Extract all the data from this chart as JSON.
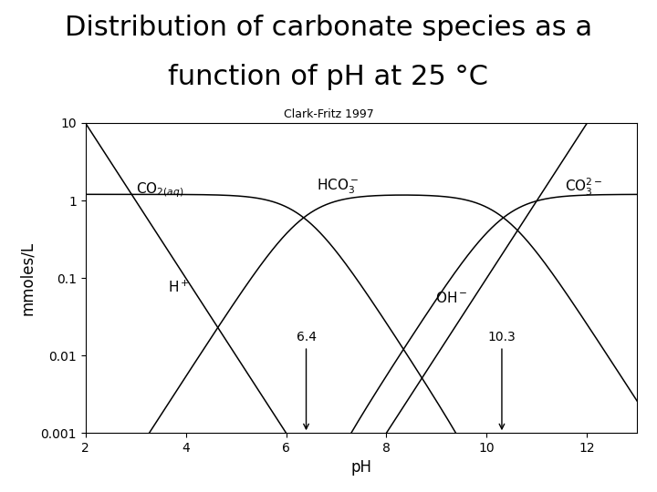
{
  "title_line1": "Distribution of carbonate species as a",
  "title_line2": "function of pH at 25 °C",
  "subtitle": "Clark-Fritz 1997",
  "xlabel": "pH",
  "ylabel": "mmoles/L",
  "xlim": [
    2,
    13
  ],
  "xticks": [
    2,
    4,
    6,
    8,
    10,
    12
  ],
  "ytick_vals": [
    -3,
    -2,
    -1,
    0,
    1
  ],
  "ytick_labels": [
    "0.001",
    "0.01",
    "0.1",
    "1",
    "10"
  ],
  "background": "#ffffff",
  "line_color": "#000000",
  "line_width": 1.1,
  "pKa1": 6.35,
  "pKa2": 10.33,
  "pKw": 14.0,
  "CT_mmol": 1.2,
  "annotation_arrows": [
    {
      "x": 6.4,
      "label": "6.4"
    },
    {
      "x": 10.3,
      "label": "10.3"
    }
  ],
  "title_fontsize": 22,
  "subtitle_fontsize": 9,
  "axis_label_fontsize": 12,
  "tick_fontsize": 10,
  "species_fontsize": 11
}
